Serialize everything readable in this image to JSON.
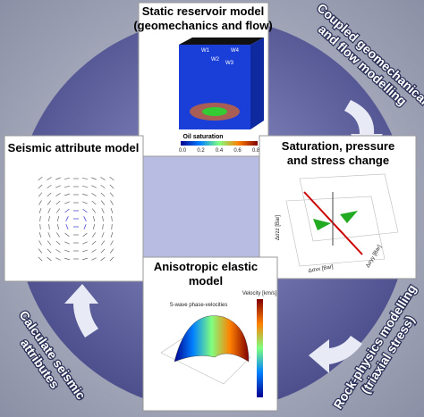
{
  "panels": {
    "static_reservoir": {
      "title": [
        "Static reservoir model",
        "(geomechanics and flow)"
      ],
      "wells": [
        "W1",
        "W2",
        "W3",
        "W4"
      ],
      "colorbar_label": "Oil saturation",
      "colorbar_ticks": [
        "0.0",
        "0.2",
        "0.4",
        "0.6",
        "0.8"
      ]
    },
    "seismic": {
      "title": "Seismic attribute model"
    },
    "stress": {
      "title": [
        "Saturation, pressure",
        "and stress change"
      ],
      "axis_labels": [
        "Δσzz [Bar]",
        "Δσxx [Bar]",
        "Δσyy [Bar]"
      ]
    },
    "elastic": {
      "title": [
        "Anisotropic elastic",
        "model"
      ],
      "plot_title": "S-wave phase-velocities",
      "colorbar_label": "Velocity [km/s]"
    }
  },
  "processes": [
    {
      "label": [
        "Coupled geomechanical",
        "and flow modelling"
      ]
    },
    {
      "label": [
        "Rock-physics modelling",
        "(triaxial stress)"
      ]
    },
    {
      "label": [
        "Calculate seismic",
        "attributes"
      ]
    }
  ]
}
